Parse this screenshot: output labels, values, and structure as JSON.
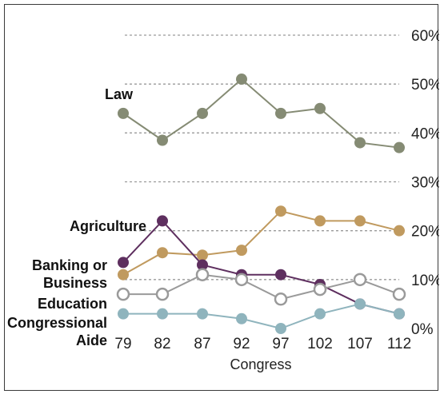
{
  "chart_data": {
    "type": "line",
    "title": "",
    "xlabel": "Congress",
    "ylabel": "",
    "categories": [
      "79",
      "82",
      "87",
      "92",
      "97",
      "102",
      "107",
      "112"
    ],
    "ylim": [
      0,
      60
    ],
    "yticks": [
      "0%",
      "10%",
      "20%",
      "30%",
      "40%",
      "50%",
      "60%"
    ],
    "grid": "horizontal dashed",
    "series": [
      {
        "name": "Law",
        "color": "#858b74",
        "marker": "filled",
        "values": [
          44,
          38.5,
          44,
          51,
          44,
          45,
          38,
          37
        ]
      },
      {
        "name": "Agriculture",
        "color": "#c09a5f",
        "marker": "filled",
        "values": [
          11,
          15.5,
          15,
          16,
          24,
          22,
          22,
          20
        ]
      },
      {
        "name": "Banking or\nBusiness",
        "label_lines": [
          "Banking or",
          "Business"
        ],
        "color": "#5e2f5f",
        "marker": "filled",
        "values": [
          13.5,
          22,
          13,
          11,
          11,
          9,
          5,
          3
        ]
      },
      {
        "name": "Education",
        "color": "#9a9a9a",
        "marker": "hollow",
        "values": [
          7,
          7,
          11,
          10,
          6,
          8,
          10,
          7
        ]
      },
      {
        "name": "Congressional\nAide",
        "label_lines": [
          "Congressional",
          "Aide"
        ],
        "color": "#8fb4bd",
        "marker": "filled",
        "values": [
          3,
          3,
          3,
          2,
          0,
          3,
          5,
          3
        ]
      }
    ]
  }
}
